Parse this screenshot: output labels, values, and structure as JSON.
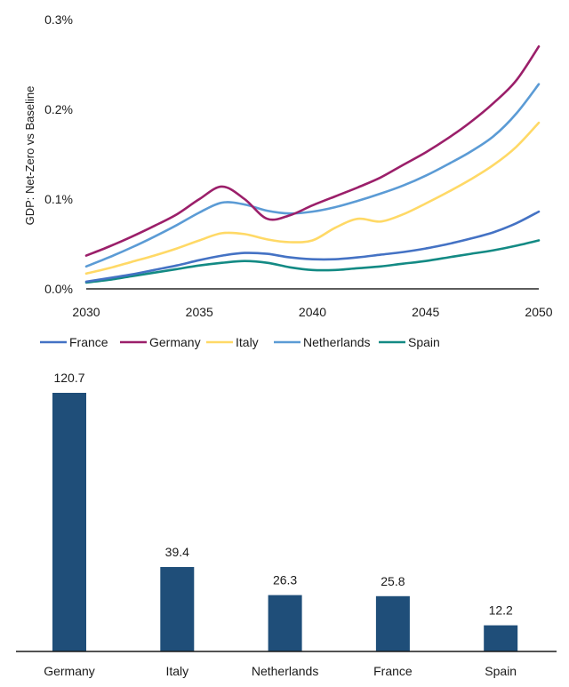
{
  "chart_data": [
    {
      "type": "line",
      "title": "",
      "xlabel": "",
      "ylabel": "GDP: Net-Zero vs Baseline",
      "xlim": [
        2030,
        2050
      ],
      "ylim": [
        0,
        0.3
      ],
      "x_ticks": [
        "2030",
        "2035",
        "2040",
        "2045",
        "2050"
      ],
      "x_tick_values": [
        2030,
        2035,
        2040,
        2045,
        2050
      ],
      "y_ticks": [
        "0.0%",
        "0.1%",
        "0.2%",
        "0.3%"
      ],
      "y_tick_values": [
        0,
        0.1,
        0.2,
        0.3
      ],
      "y_unit": "%",
      "grid": false,
      "legend_position": "bottom",
      "legend": [
        "France",
        "Germany",
        "Italy",
        "Netherlands",
        "Spain"
      ],
      "x": [
        2030,
        2031,
        2032,
        2033,
        2034,
        2035,
        2036,
        2037,
        2038,
        2039,
        2040,
        2041,
        2042,
        2043,
        2044,
        2045,
        2046,
        2047,
        2048,
        2049,
        2050
      ],
      "series": [
        {
          "name": "France",
          "color": "#4472c4",
          "values": [
            0.008,
            0.012,
            0.016,
            0.021,
            0.026,
            0.032,
            0.037,
            0.04,
            0.039,
            0.035,
            0.033,
            0.033,
            0.035,
            0.038,
            0.041,
            0.045,
            0.05,
            0.056,
            0.063,
            0.073,
            0.086
          ]
        },
        {
          "name": "Germany",
          "color": "#9b1f6a",
          "values": [
            0.037,
            0.047,
            0.058,
            0.07,
            0.083,
            0.1,
            0.114,
            0.1,
            0.078,
            0.082,
            0.093,
            0.103,
            0.113,
            0.124,
            0.138,
            0.152,
            0.168,
            0.186,
            0.207,
            0.232,
            0.27
          ]
        },
        {
          "name": "Italy",
          "color": "#ffd966",
          "values": [
            0.017,
            0.023,
            0.03,
            0.037,
            0.045,
            0.054,
            0.062,
            0.061,
            0.055,
            0.052,
            0.054,
            0.068,
            0.078,
            0.075,
            0.083,
            0.095,
            0.108,
            0.122,
            0.138,
            0.158,
            0.185
          ]
        },
        {
          "name": "Netherlands",
          "color": "#5b9bd5",
          "values": [
            0.025,
            0.035,
            0.046,
            0.058,
            0.071,
            0.085,
            0.096,
            0.094,
            0.087,
            0.084,
            0.086,
            0.091,
            0.098,
            0.106,
            0.115,
            0.126,
            0.139,
            0.153,
            0.17,
            0.195,
            0.228
          ]
        },
        {
          "name": "Spain",
          "color": "#138a84",
          "values": [
            0.007,
            0.01,
            0.014,
            0.018,
            0.022,
            0.026,
            0.029,
            0.031,
            0.029,
            0.024,
            0.021,
            0.021,
            0.023,
            0.025,
            0.028,
            0.031,
            0.035,
            0.039,
            0.043,
            0.048,
            0.054
          ]
        }
      ]
    },
    {
      "type": "bar",
      "title": "",
      "xlabel": "",
      "ylabel": "",
      "categories": [
        "Germany",
        "Italy",
        "Netherlands",
        "France",
        "Spain"
      ],
      "values": [
        120.7,
        39.4,
        26.3,
        25.8,
        12.2
      ],
      "value_labels": [
        "120.7",
        "39.4",
        "26.3",
        "25.8",
        "12.2"
      ],
      "ylim": [
        0,
        120.7
      ],
      "bar_color": "#1f4e79",
      "grid": false
    }
  ]
}
